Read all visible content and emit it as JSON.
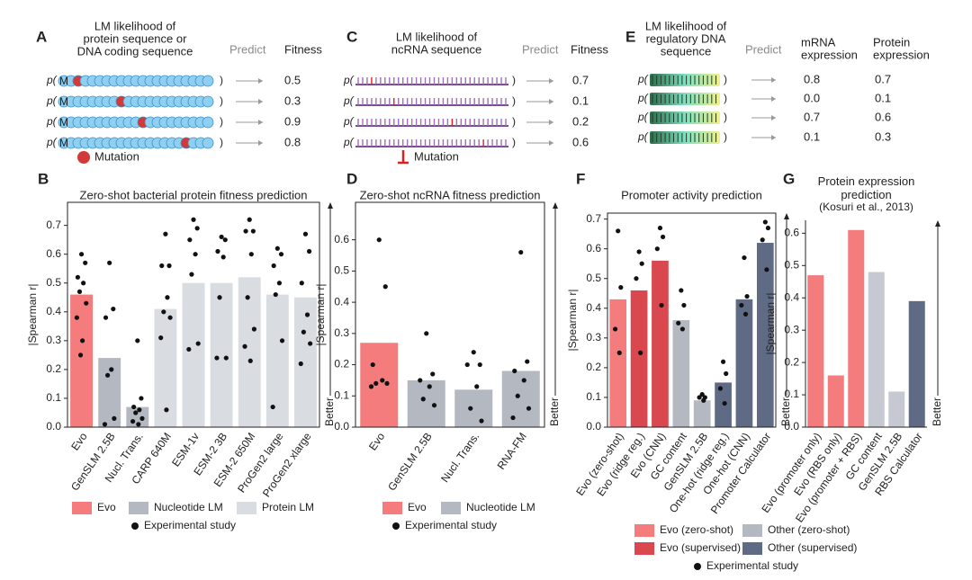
{
  "panels": [
    {
      "letter": "A",
      "title": [
        "LM likelihood of",
        "protein sequence or",
        "DNA coding sequence"
      ],
      "predict": "Predict",
      "columns": [
        [
          "Fitness"
        ]
      ],
      "p_open": "p(",
      "p_close": ")",
      "start": "M",
      "rows": [
        [
          "0.5"
        ],
        [
          "0.3"
        ],
        [
          "0.9"
        ],
        [
          "0.8"
        ]
      ],
      "legend": "Mutation"
    },
    {
      "letter": "C",
      "title": [
        "LM likelihood of",
        "ncRNA sequence"
      ],
      "predict": "Predict",
      "columns": [
        [
          "Fitness"
        ]
      ],
      "p_open": "p(",
      "p_close": ")",
      "rows": [
        [
          "0.7"
        ],
        [
          "0.1"
        ],
        [
          "0.2"
        ],
        [
          "0.6"
        ]
      ],
      "legend": "Mutation"
    },
    {
      "letter": "E",
      "title": [
        "LM likelihood of",
        "regulatory DNA",
        "sequence"
      ],
      "predict": "Predict",
      "columns": [
        [
          "mRNA",
          "expression"
        ],
        [
          "Protein",
          "expression"
        ]
      ],
      "p_open": "p(",
      "p_close": ")",
      "rows": [
        [
          "0.8",
          "0.7"
        ],
        [
          "0.0",
          "0.1"
        ],
        [
          "0.7",
          "0.6"
        ],
        [
          "0.1",
          "0.3"
        ]
      ]
    }
  ],
  "chart_data": [
    {
      "type": "bar",
      "label": "B",
      "title": "Zero-shot bacterial protein fitness prediction",
      "y_label": "|Spearman r|",
      "better": "Better",
      "categories": [
        "Evo",
        "GenSLM 2.5B",
        "Nucl. Trans.",
        "CARP 640M",
        "ESM-1v",
        "ESM-2 3B",
        "ESM-2 650M",
        "ProGen2 large",
        "ProGen2 xlarge"
      ],
      "values": [
        0.46,
        0.24,
        0.07,
        0.41,
        0.5,
        0.5,
        0.52,
        0.46,
        0.45
      ],
      "colors": [
        "#f47c7c",
        "#b4b8c1",
        "#b4b8c1",
        "#d9dce1",
        "#d9dce1",
        "#d9dce1",
        "#d9dce1",
        "#d9dce1",
        "#d9dce1"
      ],
      "points": [
        [
          0.6,
          0.57,
          0.52,
          0.5,
          0.47,
          0.43,
          0.38,
          0.3,
          0.25
        ],
        [
          0.57,
          0.41,
          0.38,
          0.2,
          0.18,
          0.03,
          0.01
        ],
        [
          0.3,
          0.1,
          0.07,
          0.06,
          0.05,
          0.03,
          0.02,
          0.01
        ],
        [
          0.67,
          0.56,
          0.56,
          0.45,
          0.4,
          0.38,
          0.31,
          0.06
        ],
        [
          0.72,
          0.69,
          0.65,
          0.6,
          0.53,
          0.29,
          0.27
        ],
        [
          0.66,
          0.65,
          0.61,
          0.59,
          0.45,
          0.24,
          0.24
        ],
        [
          0.72,
          0.68,
          0.68,
          0.6,
          0.45,
          0.34,
          0.28,
          0.23
        ],
        [
          0.62,
          0.6,
          0.56,
          0.5,
          0.46,
          0.3,
          0.07
        ],
        [
          0.67,
          0.61,
          0.5,
          0.39,
          0.33,
          0.29,
          0.22
        ]
      ],
      "points_label": "Experimental study",
      "legend": [
        {
          "name": "Evo",
          "color": "#f47c7c"
        },
        {
          "name": "Nucleotide LM",
          "color": "#b4b8c1"
        },
        {
          "name": "Protein LM",
          "color": "#d9dce1"
        }
      ],
      "ylim": [
        0,
        0.78
      ],
      "yticks": [
        {
          "value": 0,
          "label": "0.0"
        },
        0.1,
        0.2,
        0.3,
        0.4,
        0.5,
        0.6,
        0.7
      ]
    },
    {
      "type": "bar",
      "label": "D",
      "title": "Zero-shot ncRNA fitness prediction",
      "y_label": "|Spearman r|",
      "better": "Better",
      "categories": [
        "Evo",
        "GenSLM 2.5B",
        "Nucl. Trans.",
        "RNA-FM"
      ],
      "values": [
        0.27,
        0.15,
        0.12,
        0.18
      ],
      "colors": [
        "#f47c7c",
        "#b4b8c1",
        "#b4b8c1",
        "#b4b8c1"
      ],
      "points": [
        [
          0.6,
          0.45,
          0.2,
          0.15,
          0.14,
          0.14,
          0.13
        ],
        [
          0.3,
          0.17,
          0.15,
          0.13,
          0.09,
          0.07
        ],
        [
          0.24,
          0.2,
          0.2,
          0.13,
          0.06,
          0.02
        ],
        [
          0.56,
          0.21,
          0.18,
          0.15,
          0.1,
          0.06,
          0.03
        ]
      ],
      "points_label": "Experimental study",
      "legend": [
        {
          "name": "Evo",
          "color": "#f47c7c"
        },
        {
          "name": "Nucleotide LM",
          "color": "#b4b8c1"
        }
      ],
      "ylim": [
        0,
        0.72
      ],
      "yticks": [
        {
          "value": 0,
          "label": "0.0"
        },
        0.1,
        0.2,
        0.3,
        0.4,
        0.5,
        0.6
      ]
    },
    {
      "type": "bar",
      "label": "F",
      "title": "Promoter activity prediction",
      "y_label": "|Spearman r|",
      "better": "Better",
      "categories": [
        "Evo (zero-shot)",
        "Evo (ridge reg.)",
        "Evo (CNN)",
        "GC content",
        "GenSLM 2.5B",
        "One-hot (ridge reg.)",
        "One-hot (CNN)",
        "Promoter Calculator"
      ],
      "values": [
        0.43,
        0.46,
        0.56,
        0.36,
        0.09,
        0.15,
        0.43,
        0.62
      ],
      "colors": [
        "#f47c7c",
        "#d9474f",
        "#d9474f",
        "#b4b8c1",
        "#b4b8c1",
        "#5f6b85",
        "#5f6b85",
        "#5f6b85"
      ],
      "points": [
        [
          0.66,
          0.47,
          0.33,
          0.25
        ],
        [
          0.59,
          0.55,
          0.5,
          0.25
        ],
        [
          0.67,
          0.64,
          0.6,
          0.41
        ],
        [
          0.46,
          0.41,
          0.35,
          0.33
        ],
        [
          0.11,
          0.1,
          0.1,
          0.09
        ],
        [
          0.22,
          0.18,
          0.13,
          0.08
        ],
        [
          0.57,
          0.44,
          0.41,
          0.38
        ],
        [
          0.69,
          0.67,
          0.63,
          0.53
        ]
      ],
      "points_label": "Experimental study",
      "legend": [
        {
          "name": "Evo (zero-shot)",
          "color": "#f47c7c"
        },
        {
          "name": "Other (zero-shot)",
          "color": "#b4b8c1"
        },
        {
          "name": "Evo (supervised)",
          "color": "#d9474f"
        },
        {
          "name": "Other (supervised)",
          "color": "#5f6b85"
        }
      ],
      "ylim": [
        0,
        0.72
      ],
      "yticks": [
        {
          "value": 0,
          "label": "0.0"
        },
        0.1,
        0.2,
        0.3,
        0.4,
        0.5,
        0.6,
        0.7
      ]
    },
    {
      "type": "bar",
      "label": "G",
      "title": "Protein expression prediction",
      "subtitle": "(Kosuri et al., 2013)",
      "y_label": "|Spearman r|",
      "better": "Better",
      "categories": [
        "Evo (promoter only)",
        "Evo (RBS only)",
        "Evo (promoter + RBS)",
        "GC content",
        "GenSLM 2.5B",
        "RBS Calculator"
      ],
      "values": [
        0.47,
        0.16,
        0.61,
        0.48,
        0.11,
        0.39
      ],
      "colors": [
        "#f47c7c",
        "#f47c7c",
        "#f47c7c",
        "#c6c9d1",
        "#c6c9d1",
        "#5f6b85"
      ],
      "ylim": [
        0,
        0.64
      ],
      "yticks": [
        {
          "value": 0,
          "label": "0.0"
        },
        0.1,
        0.2,
        0.3,
        0.4,
        0.5,
        0.6
      ]
    }
  ]
}
